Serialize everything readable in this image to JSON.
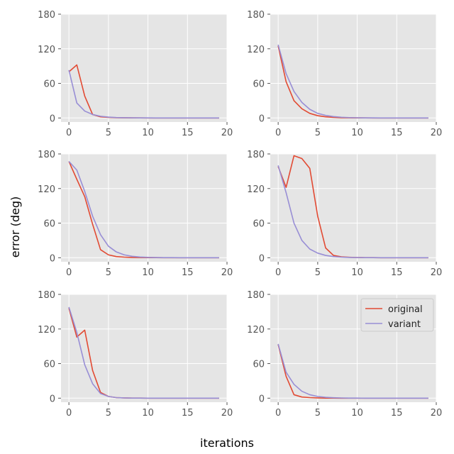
{
  "figure": {
    "xlabel": "iterations",
    "ylabel": "error (deg)",
    "series_names": [
      "original",
      "variant"
    ],
    "series_colors": [
      "#E24A33",
      "#988ED5"
    ],
    "legend_location": "upper-right of bottom-right panel",
    "grid": true,
    "style": "ggplot"
  },
  "chart_data": [
    {
      "type": "line",
      "panel": "row1-col1",
      "x": [
        0,
        1,
        2,
        3,
        4,
        5,
        6,
        7,
        8,
        9,
        10,
        11,
        12,
        13,
        14,
        15,
        16,
        17,
        18,
        19
      ],
      "xlim": [
        -1,
        20
      ],
      "ylim": [
        -7,
        180
      ],
      "xticks": [
        0,
        5,
        10,
        15,
        20
      ],
      "yticks": [
        0,
        60,
        120,
        180
      ],
      "series": [
        {
          "name": "original",
          "values": [
            80,
            92,
            38,
            6,
            2,
            1,
            0.5,
            0.3,
            0.2,
            0.1,
            0,
            0,
            0,
            0,
            0,
            0,
            0,
            0,
            0,
            0
          ]
        },
        {
          "name": "variant",
          "values": [
            83,
            26,
            12,
            6,
            3,
            1.5,
            0.8,
            0.5,
            0.3,
            0.2,
            0.1,
            0,
            0,
            0,
            0,
            0,
            0,
            0,
            0,
            0
          ]
        }
      ]
    },
    {
      "type": "line",
      "panel": "row1-col2",
      "x": [
        0,
        1,
        2,
        3,
        4,
        5,
        6,
        7,
        8,
        9,
        10,
        11,
        12,
        13,
        14,
        15,
        16,
        17,
        18,
        19
      ],
      "xlim": [
        -1,
        20
      ],
      "ylim": [
        -7,
        180
      ],
      "xticks": [
        0,
        5,
        10,
        15,
        20
      ],
      "yticks": [
        0,
        60,
        120,
        180
      ],
      "series": [
        {
          "name": "original",
          "values": [
            125,
            63,
            30,
            16,
            8,
            4,
            2,
            1,
            0.5,
            0.3,
            0.2,
            0.1,
            0,
            0,
            0,
            0,
            0,
            0,
            0,
            0
          ]
        },
        {
          "name": "variant",
          "values": [
            127,
            77,
            46,
            27,
            15,
            8,
            4.5,
            2.5,
            1.3,
            0.7,
            0.4,
            0.2,
            0.1,
            0,
            0,
            0,
            0,
            0,
            0,
            0
          ]
        }
      ]
    },
    {
      "type": "line",
      "panel": "row2-col1",
      "x": [
        0,
        1,
        2,
        3,
        4,
        5,
        6,
        7,
        8,
        9,
        10,
        11,
        12,
        13,
        14,
        15,
        16,
        17,
        18,
        19
      ],
      "xlim": [
        -1,
        20
      ],
      "ylim": [
        -7,
        180
      ],
      "xticks": [
        0,
        5,
        10,
        15,
        20
      ],
      "yticks": [
        0,
        60,
        120,
        180
      ],
      "series": [
        {
          "name": "original",
          "values": [
            167,
            136,
            106,
            58,
            14,
            5,
            2,
            1,
            0.5,
            0.3,
            0.2,
            0.1,
            0,
            0,
            0,
            0,
            0,
            0,
            0,
            0
          ]
        },
        {
          "name": "variant",
          "values": [
            167,
            152,
            115,
            72,
            40,
            20,
            10,
            5,
            2.5,
            1.2,
            0.6,
            0.3,
            0.2,
            0.1,
            0,
            0,
            0,
            0,
            0,
            0
          ]
        }
      ]
    },
    {
      "type": "line",
      "panel": "row2-col2",
      "x": [
        0,
        1,
        2,
        3,
        4,
        5,
        6,
        7,
        8,
        9,
        10,
        11,
        12,
        13,
        14,
        15,
        16,
        17,
        18,
        19
      ],
      "xlim": [
        -1,
        20
      ],
      "ylim": [
        -7,
        180
      ],
      "xticks": [
        0,
        5,
        10,
        15,
        20
      ],
      "yticks": [
        0,
        60,
        120,
        180
      ],
      "series": [
        {
          "name": "original",
          "values": [
            158,
            122,
            177,
            172,
            155,
            72,
            17,
            4,
            1.5,
            0.8,
            0.4,
            0.2,
            0.1,
            0,
            0,
            0,
            0,
            0,
            0,
            0
          ]
        },
        {
          "name": "variant",
          "values": [
            160,
            113,
            60,
            30,
            15,
            8,
            4,
            2,
            1,
            0.5,
            0.3,
            0.2,
            0.1,
            0,
            0,
            0,
            0,
            0,
            0,
            0
          ]
        }
      ]
    },
    {
      "type": "line",
      "panel": "row3-col1",
      "x": [
        0,
        1,
        2,
        3,
        4,
        5,
        6,
        7,
        8,
        9,
        10,
        11,
        12,
        13,
        14,
        15,
        16,
        17,
        18,
        19
      ],
      "xlim": [
        -1,
        20
      ],
      "ylim": [
        -7,
        180
      ],
      "xticks": [
        0,
        5,
        10,
        15,
        20
      ],
      "yticks": [
        0,
        60,
        120,
        180
      ],
      "series": [
        {
          "name": "original",
          "values": [
            156,
            106,
            118,
            48,
            10,
            3,
            1,
            0.5,
            0.2,
            0.1,
            0,
            0,
            0,
            0,
            0,
            0,
            0,
            0,
            0,
            0
          ]
        },
        {
          "name": "variant",
          "values": [
            158,
            114,
            58,
            25,
            8,
            3,
            1,
            0.5,
            0.2,
            0.1,
            0,
            0,
            0,
            0,
            0,
            0,
            0,
            0,
            0,
            0
          ]
        }
      ]
    },
    {
      "type": "line",
      "panel": "row3-col2",
      "x": [
        0,
        1,
        2,
        3,
        4,
        5,
        6,
        7,
        8,
        9,
        10,
        11,
        12,
        13,
        14,
        15,
        16,
        17,
        18,
        19
      ],
      "xlim": [
        -1,
        20
      ],
      "ylim": [
        -7,
        180
      ],
      "xticks": [
        0,
        5,
        10,
        15,
        20
      ],
      "yticks": [
        0,
        60,
        120,
        180
      ],
      "series": [
        {
          "name": "original",
          "values": [
            93,
            38,
            6,
            2,
            1,
            0.5,
            0.2,
            0.1,
            0,
            0,
            0,
            0,
            0,
            0,
            0,
            0,
            0,
            0,
            0,
            0
          ]
        },
        {
          "name": "variant",
          "values": [
            94,
            45,
            24,
            12,
            6,
            3,
            1.5,
            0.8,
            0.4,
            0.2,
            0.1,
            0,
            0,
            0,
            0,
            0,
            0,
            0,
            0,
            0
          ]
        }
      ]
    }
  ]
}
